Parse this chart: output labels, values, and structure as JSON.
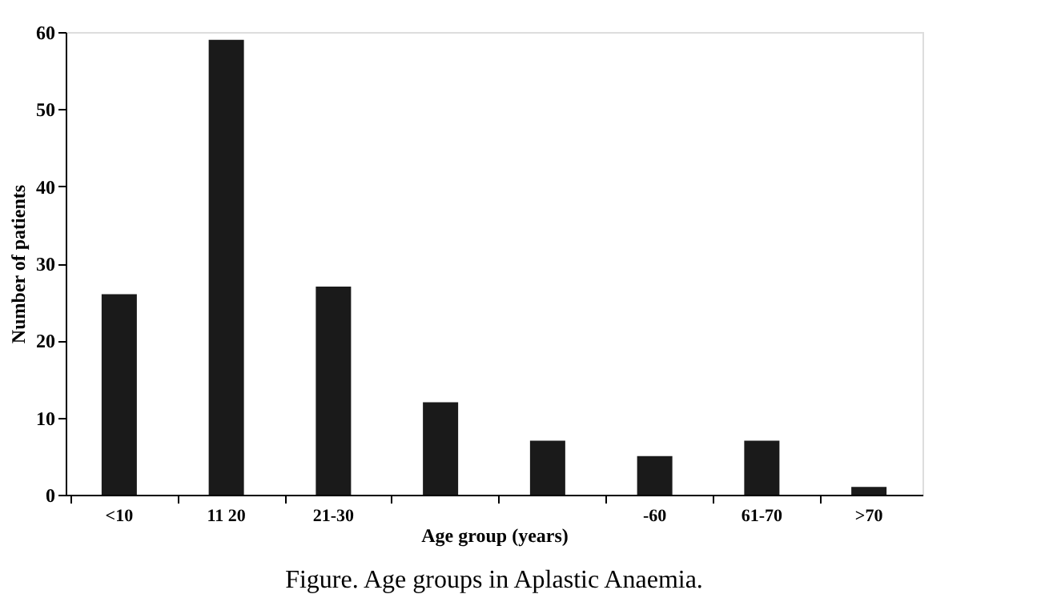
{
  "chart_data": {
    "type": "bar",
    "title": "Figure. Age groups in Aplastic Anaemia.",
    "xlabel": "Age group (years)",
    "ylabel": "Number of patients",
    "categories": [
      "<10",
      "11 20",
      "21-30",
      null,
      null,
      "-60",
      "61-70",
      ">70"
    ],
    "values": [
      26,
      59,
      27,
      12,
      7,
      5,
      7,
      1
    ],
    "color": "#1a1a1a",
    "ylim": [
      0,
      60
    ],
    "yticks": [
      0,
      10,
      20,
      30,
      40,
      50,
      60
    ],
    "grid": false
  }
}
